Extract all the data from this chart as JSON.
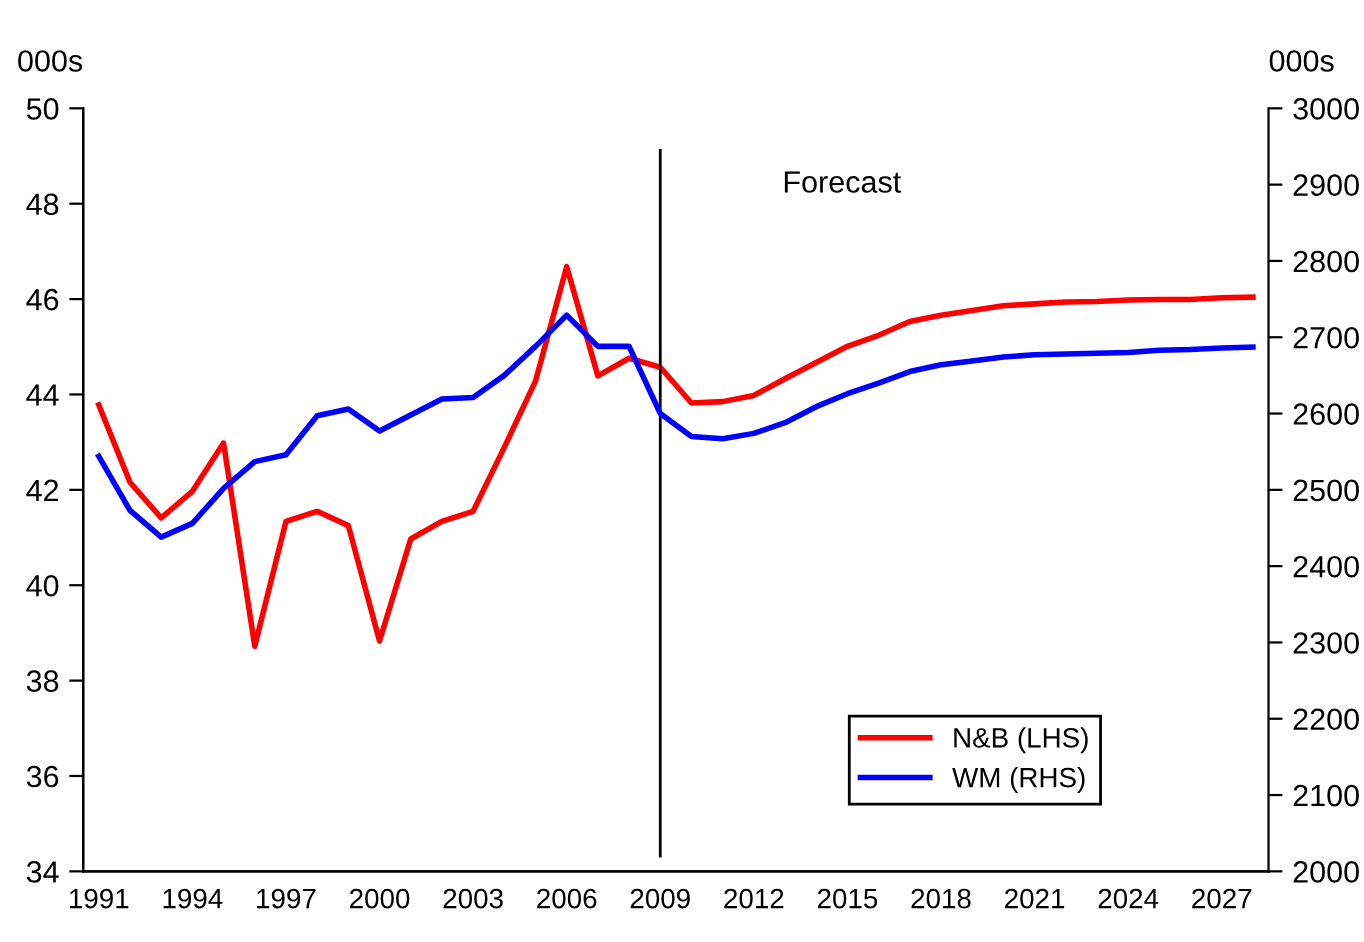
{
  "chart_data": {
    "type": "line",
    "categories": [
      "1991",
      null,
      null,
      "1994",
      null,
      null,
      "1997",
      null,
      null,
      "2000",
      null,
      null,
      "2003",
      null,
      null,
      "2006",
      null,
      null,
      "2009",
      null,
      null,
      "2012",
      null,
      null,
      "2015",
      null,
      null,
      "2018",
      null,
      null,
      "2021",
      null,
      null,
      "2024",
      null,
      null,
      "2027",
      null
    ],
    "series": [
      {
        "name": "N&B (LHS)",
        "color": "#ff0000",
        "values": [
          43.78,
          42.16,
          41.41,
          41.97,
          42.98,
          38.72,
          41.34,
          41.55,
          41.25,
          38.83,
          40.97,
          41.34,
          41.55,
          42.89,
          44.28,
          46.68,
          44.39,
          44.76,
          44.57,
          43.82,
          43.85,
          43.98,
          44.33,
          44.67,
          45.01,
          45.24,
          45.53,
          45.66,
          45.76,
          45.86,
          45.9,
          45.94,
          45.95,
          45.98,
          45.99,
          45.99,
          46.03,
          46.04
        ]
      },
      {
        "name": "WM (RHS)",
        "color": "#0000ff",
        "axis": "y2",
        "values": [
          2544,
          2473,
          2438,
          2456,
          2502,
          2537,
          2546,
          2597,
          2606,
          2577,
          2598,
          2619,
          2621,
          2650,
          2688,
          2729,
          2688,
          2688,
          2600,
          2570,
          2567,
          2574,
          2588,
          2609,
          2626,
          2640,
          2655,
          2664,
          2669,
          2674,
          2677,
          2678,
          2679,
          2680,
          2683,
          2684,
          2686,
          2687
        ]
      }
    ],
    "ylabel": "000s",
    "y2label": "000s",
    "ylim": [
      34,
      50
    ],
    "yticks": [
      34,
      36,
      38,
      40,
      42,
      44,
      46,
      48,
      50
    ],
    "y2lim": [
      2000,
      3000
    ],
    "y2ticks": [
      2000,
      2100,
      2200,
      2300,
      2400,
      2500,
      2600,
      2700,
      2800,
      2900,
      3000
    ],
    "ref_lines": [
      {
        "axis": "x",
        "value": "2009",
        "color": "#000000"
      }
    ],
    "annotations": [
      "Forecast"
    ],
    "legend": "bottom right",
    "grid": false,
    "marker": "none",
    "line_style": "solid"
  }
}
